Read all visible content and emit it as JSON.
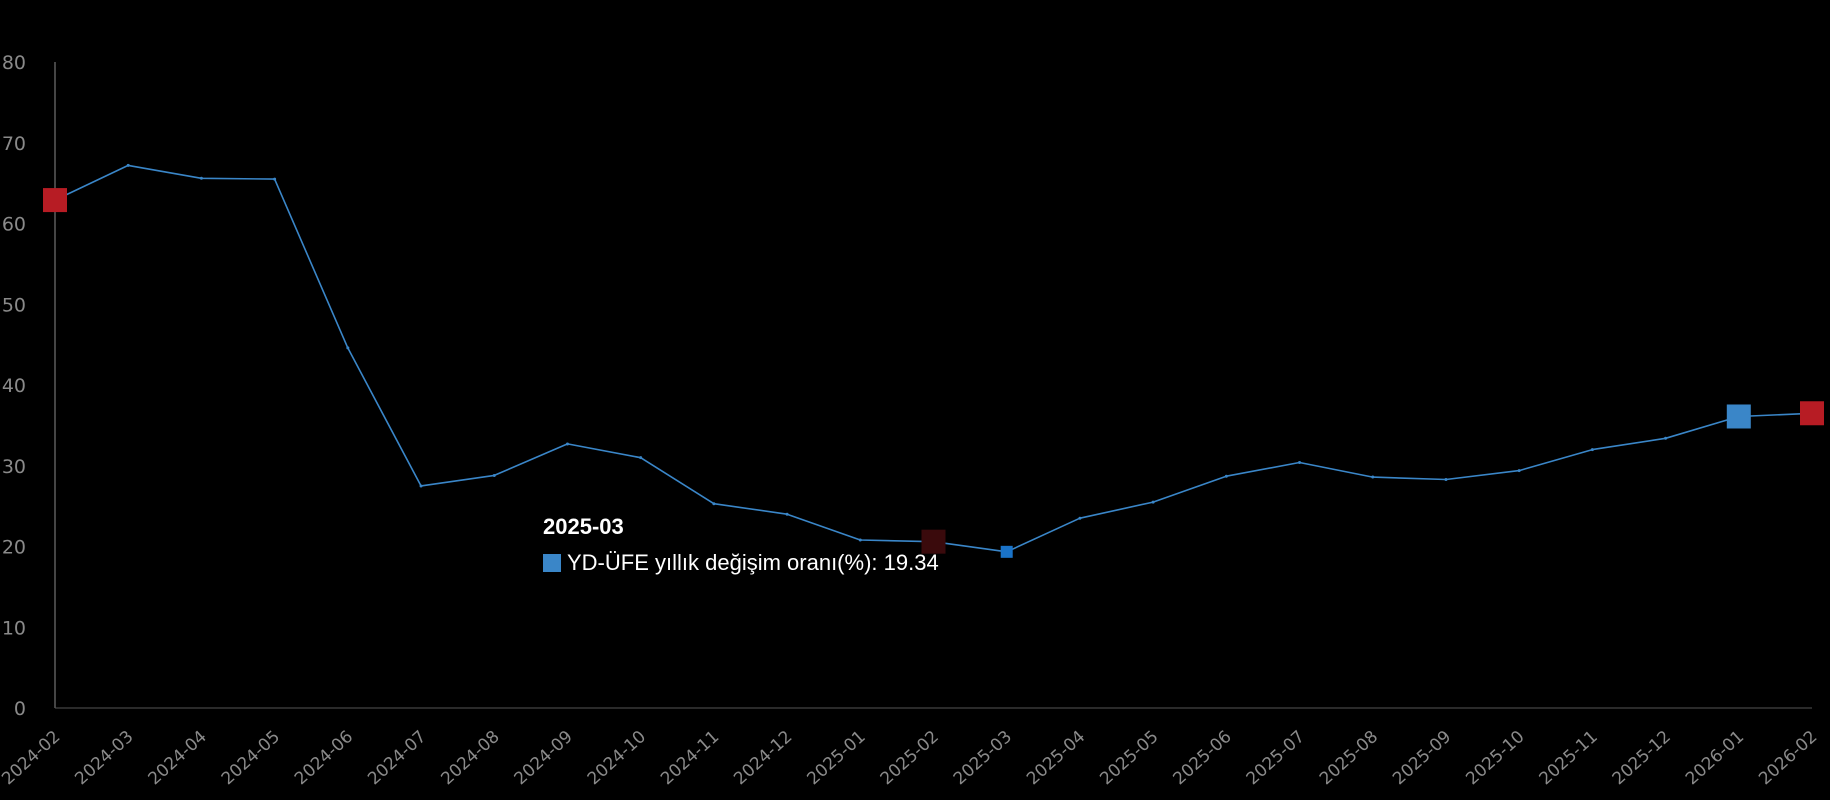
{
  "chart_data": {
    "type": "line",
    "categories": [
      "2024-02",
      "2024-03",
      "2024-04",
      "2024-05",
      "2024-06",
      "2024-07",
      "2024-08",
      "2024-09",
      "2024-10",
      "2024-11",
      "2024-12",
      "2025-01",
      "2025-02",
      "2025-03",
      "2025-04",
      "2025-05",
      "2025-06",
      "2025-07",
      "2025-08",
      "2025-09",
      "2025-10",
      "2025-11",
      "2025-12",
      "2026-01",
      "2026-02"
    ],
    "series": [
      {
        "name": "YD-ÜFE yıllık değişim oranı(%)",
        "color": "#3a86c8",
        "values": [
          62.9,
          67.2,
          65.6,
          65.5,
          44.6,
          27.5,
          28.8,
          32.7,
          31.0,
          25.3,
          24.0,
          20.8,
          20.6,
          19.34,
          23.5,
          25.5,
          28.7,
          30.4,
          28.6,
          28.3,
          29.4,
          32.0,
          33.4,
          36.1,
          36.5
        ]
      }
    ],
    "ylim": [
      0,
      80
    ],
    "yticks": [
      "0",
      "10",
      "20",
      "30",
      "40",
      "50",
      "60",
      "70",
      "80"
    ],
    "grid": false,
    "markers": [
      {
        "category": "2024-02",
        "value": 62.9,
        "color": "#b71c24"
      },
      {
        "category": "2025-02",
        "value": 20.6,
        "color": "#3a0a0c"
      },
      {
        "category": "2025-03",
        "value": 19.34,
        "color": "#1a73c8"
      },
      {
        "category": "2026-01",
        "value": 36.1,
        "color": "#3a86c8"
      },
      {
        "category": "2026-02",
        "value": 36.5,
        "color": "#b71c24"
      }
    ]
  },
  "tooltip": {
    "title": "2025-03",
    "series_label": "YD-ÜFE yıllık değişim oranı(%)",
    "value": "19.34",
    "swatch_color": "#3a86c8"
  },
  "colors": {
    "background": "#000000",
    "axis": "#8a8a8a",
    "line": "#3a86c8"
  }
}
